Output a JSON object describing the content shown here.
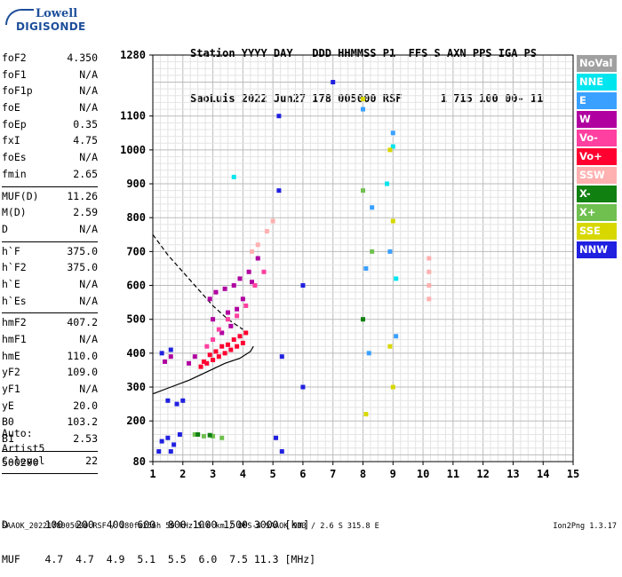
{
  "logo": {
    "line1": "Lowell",
    "line2": "DIGISONDE"
  },
  "header": {
    "line1": "Station YYYY DAY   DDD HHMMSS P1  FFS S AXN PPS IGA PS",
    "line2": "SaoLuis 2022 Jun27 178 005000 RSF      1 715 100 00- 11"
  },
  "params": {
    "group1": [
      [
        "foF2",
        "4.350"
      ],
      [
        "foF1",
        "N/A"
      ],
      [
        "foF1p",
        "N/A"
      ],
      [
        "foE",
        "N/A"
      ],
      [
        "foEp",
        "0.35"
      ],
      [
        "fxI",
        "4.75"
      ],
      [
        "foEs",
        "N/A"
      ],
      [
        "fmin",
        "2.65"
      ]
    ],
    "group2": [
      [
        "MUF(D)",
        "11.26"
      ],
      [
        "M(D)",
        "2.59"
      ],
      [
        "D",
        "N/A"
      ]
    ],
    "group3": [
      [
        "h`F",
        "375.0"
      ],
      [
        "h`F2",
        "375.0"
      ],
      [
        "h`E",
        "N/A"
      ],
      [
        "h`Es",
        "N/A"
      ]
    ],
    "group4": [
      [
        "hmF2",
        "407.2"
      ],
      [
        "hmF1",
        "N/A"
      ],
      [
        "hmE",
        "110.0"
      ],
      [
        "yF2",
        "109.0"
      ],
      [
        "yF1",
        "N/A"
      ],
      [
        "yE",
        "20.0"
      ],
      [
        "B0",
        "103.2"
      ],
      [
        "B1",
        "2.53"
      ]
    ],
    "group5": [
      [
        "C-level",
        "22"
      ]
    ]
  },
  "auto": {
    "line1": "Auto:",
    "line2": "Artist5",
    "line3": "500200"
  },
  "legend": [
    {
      "label": "NoVal",
      "color": "#a0a0a0"
    },
    {
      "label": "NNE",
      "color": "#00e5ee"
    },
    {
      "label": "E",
      "color": "#3aa0ff"
    },
    {
      "label": "W",
      "color": "#b000a0"
    },
    {
      "label": "Vo-",
      "color": "#ff40a0"
    },
    {
      "label": "Vo+",
      "color": "#ff0030"
    },
    {
      "label": "SSW",
      "color": "#ffb0b0"
    },
    {
      "label": "X-",
      "color": "#108010"
    },
    {
      "label": "X+",
      "color": "#70c050"
    },
    {
      "label": "SSE",
      "color": "#d8d800"
    },
    {
      "label": "NNW",
      "color": "#2020e0"
    }
  ],
  "dmuf": {
    "d_line": "D      100  200  400  600  800 1000 1500 3000 [km]",
    "muf_line": "MUF    4.7  4.7  4.9  5.1  5.5  6.0  7.5 11.3 [MHz]"
  },
  "footer": {
    "left": "SAAOK_2022178005000.RSF / 280fx256h 50 kHz 5.0 km / DPS-4 SAAOK 903 / 2.6 S 315.8 E",
    "right": "Ion2Png 1.3.17"
  },
  "chart_data": {
    "type": "scatter",
    "title": "",
    "xlabel": "",
    "ylabel": "",
    "xlim": [
      1,
      15
    ],
    "ylim": [
      80,
      1280
    ],
    "x_ticks": [
      1,
      2,
      3,
      4,
      5,
      6,
      7,
      8,
      9,
      10,
      11,
      12,
      13,
      14,
      15
    ],
    "y_ticks": [
      80,
      200,
      300,
      400,
      500,
      600,
      700,
      800,
      900,
      1000,
      1100,
      1280
    ],
    "grid": true,
    "series": [
      {
        "name": "Vo+",
        "color": "#ff0030",
        "points": [
          [
            2.6,
            360
          ],
          [
            2.8,
            370
          ],
          [
            3.0,
            380
          ],
          [
            3.2,
            390
          ],
          [
            3.4,
            400
          ],
          [
            3.6,
            410
          ],
          [
            3.8,
            420
          ],
          [
            4.0,
            430
          ],
          [
            2.9,
            395
          ],
          [
            3.3,
            420
          ],
          [
            3.7,
            440
          ],
          [
            4.1,
            460
          ],
          [
            2.7,
            375
          ],
          [
            3.1,
            405
          ],
          [
            3.5,
            425
          ],
          [
            3.9,
            450
          ]
        ]
      },
      {
        "name": "W",
        "color": "#b000a0",
        "points": [
          [
            2.9,
            560
          ],
          [
            3.1,
            580
          ],
          [
            3.4,
            590
          ],
          [
            3.7,
            600
          ],
          [
            3.9,
            620
          ],
          [
            4.2,
            640
          ],
          [
            3.0,
            500
          ],
          [
            3.5,
            520
          ],
          [
            3.8,
            530
          ],
          [
            4.0,
            560
          ],
          [
            3.3,
            460
          ],
          [
            3.6,
            480
          ],
          [
            4.3,
            610
          ],
          [
            4.5,
            680
          ],
          [
            2.2,
            370
          ],
          [
            2.4,
            390
          ],
          [
            1.4,
            375
          ],
          [
            1.6,
            390
          ]
        ]
      },
      {
        "name": "Vo-",
        "color": "#ff40a0",
        "points": [
          [
            3.2,
            470
          ],
          [
            3.5,
            500
          ],
          [
            3.8,
            510
          ],
          [
            4.1,
            540
          ],
          [
            4.4,
            600
          ],
          [
            4.7,
            640
          ],
          [
            2.8,
            420
          ],
          [
            3.0,
            440
          ]
        ]
      },
      {
        "name": "SSW",
        "color": "#ffb0b0",
        "points": [
          [
            4.3,
            700
          ],
          [
            4.5,
            720
          ],
          [
            4.8,
            760
          ],
          [
            5.0,
            790
          ],
          [
            10.2,
            560
          ],
          [
            10.2,
            600
          ],
          [
            10.2,
            640
          ],
          [
            10.2,
            680
          ]
        ]
      },
      {
        "name": "NNW",
        "color": "#2020e0",
        "points": [
          [
            1.3,
            140
          ],
          [
            1.5,
            150
          ],
          [
            1.7,
            130
          ],
          [
            1.9,
            160
          ],
          [
            1.2,
            110
          ],
          [
            1.6,
            110
          ],
          [
            1.8,
            250
          ],
          [
            1.5,
            260
          ],
          [
            2.0,
            260
          ],
          [
            5.2,
            1100
          ],
          [
            5.2,
            880
          ],
          [
            5.3,
            390
          ],
          [
            5.1,
            150
          ],
          [
            5.3,
            110
          ],
          [
            1.3,
            400
          ],
          [
            1.6,
            410
          ],
          [
            7.0,
            1200
          ],
          [
            6.0,
            600
          ],
          [
            6.0,
            300
          ]
        ]
      },
      {
        "name": "E",
        "color": "#3aa0ff",
        "points": [
          [
            8.0,
            1120
          ],
          [
            8.1,
            650
          ],
          [
            8.2,
            400
          ],
          [
            9.0,
            1050
          ],
          [
            8.3,
            830
          ],
          [
            8.9,
            700
          ],
          [
            9.1,
            450
          ]
        ]
      },
      {
        "name": "NNE",
        "color": "#00e5ee",
        "points": [
          [
            9.0,
            1010
          ],
          [
            9.1,
            620
          ],
          [
            8.8,
            900
          ],
          [
            3.7,
            920
          ]
        ]
      },
      {
        "name": "SSE",
        "color": "#d8d800",
        "points": [
          [
            8.0,
            1150
          ],
          [
            8.9,
            1000
          ],
          [
            9.0,
            790
          ],
          [
            8.1,
            220
          ],
          [
            8.9,
            420
          ],
          [
            9.0,
            300
          ]
        ]
      },
      {
        "name": "X+",
        "color": "#70c050",
        "points": [
          [
            2.4,
            160
          ],
          [
            2.7,
            155
          ],
          [
            3.0,
            155
          ],
          [
            3.3,
            150
          ],
          [
            8.0,
            880
          ],
          [
            8.3,
            700
          ]
        ]
      },
      {
        "name": "X-",
        "color": "#108010",
        "points": [
          [
            2.5,
            160
          ],
          [
            2.9,
            158
          ],
          [
            8.0,
            500
          ]
        ]
      }
    ],
    "curves": [
      {
        "name": "dashed",
        "style": "dashed",
        "color": "#000",
        "points": [
          [
            1.0,
            750
          ],
          [
            1.5,
            690
          ],
          [
            2.0,
            640
          ],
          [
            2.5,
            590
          ],
          [
            3.0,
            540
          ],
          [
            3.5,
            500
          ],
          [
            4.0,
            470
          ]
        ]
      },
      {
        "name": "profile",
        "style": "solid",
        "color": "#000",
        "points": [
          [
            1.0,
            280
          ],
          [
            1.6,
            300
          ],
          [
            2.2,
            320
          ],
          [
            2.8,
            345
          ],
          [
            3.4,
            370
          ],
          [
            3.9,
            385
          ],
          [
            4.25,
            405
          ],
          [
            4.35,
            420
          ]
        ]
      }
    ]
  }
}
